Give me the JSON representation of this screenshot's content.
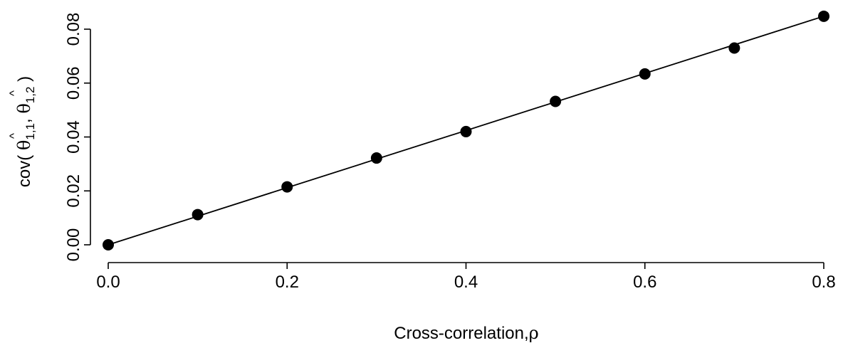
{
  "chart_data": {
    "type": "scatter",
    "title": "",
    "xlabel_text": "Cross-correlation,",
    "xlabel_symbol": "ρ",
    "ylabel": {
      "prefix": "cov(",
      "theta1": "θ",
      "sub1": "1,1",
      "sep": ",",
      "theta2": "θ",
      "sub2": "1,2",
      "suffix": ")",
      "hat": "^"
    },
    "xlim": [
      0.0,
      0.8
    ],
    "ylim": [
      0.0,
      0.085
    ],
    "xticks": [
      0.0,
      0.2,
      0.4,
      0.6,
      0.8
    ],
    "xtick_labels": [
      "0.0",
      "0.2",
      "0.4",
      "0.6",
      "0.8"
    ],
    "yticks": [
      0.0,
      0.02,
      0.04,
      0.06,
      0.08
    ],
    "ytick_labels": [
      "0.00",
      "0.02",
      "0.04",
      "0.06",
      "0.08"
    ],
    "grid": false,
    "series": [
      {
        "kind": "points",
        "x": [
          0.0,
          0.1,
          0.2,
          0.3,
          0.4,
          0.5,
          0.6,
          0.7,
          0.8
        ],
        "y": [
          0.0,
          0.0112,
          0.0215,
          0.0322,
          0.042,
          0.0532,
          0.0634,
          0.073,
          0.0848
        ],
        "color": "#000000"
      },
      {
        "kind": "line",
        "x": [
          0.0,
          0.8
        ],
        "y": [
          0.0,
          0.0848
        ],
        "color": "#000000"
      }
    ]
  }
}
